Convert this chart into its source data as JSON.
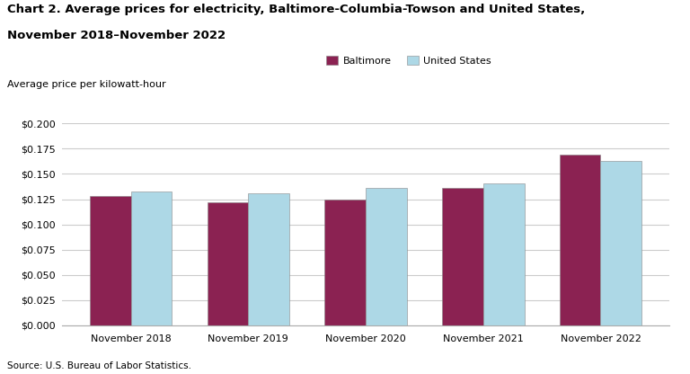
{
  "title_line1": "Chart 2. Average prices for electricity, Baltimore-Columbia-Towson and United States,",
  "title_line2": "November 2018–November 2022",
  "ylabel": "Average price per kilowatt-hour",
  "source": "Source: U.S. Bureau of Labor Statistics.",
  "categories": [
    "November 2018",
    "November 2019",
    "November 2020",
    "November 2021",
    "November 2022"
  ],
  "baltimore": [
    0.128,
    0.122,
    0.125,
    0.136,
    0.169
  ],
  "us": [
    0.133,
    0.131,
    0.136,
    0.141,
    0.163
  ],
  "baltimore_color": "#8B2252",
  "us_color": "#ADD8E6",
  "bar_edge_color": "#888888",
  "ylim": [
    0.0,
    0.2
  ],
  "ytick_step": 0.025,
  "legend_labels": [
    "Baltimore",
    "United States"
  ],
  "title_fontsize": 9.5,
  "label_fontsize": 8,
  "tick_fontsize": 8,
  "source_fontsize": 7.5,
  "bar_width": 0.35,
  "grid_color": "#cccccc",
  "background_color": "#ffffff"
}
